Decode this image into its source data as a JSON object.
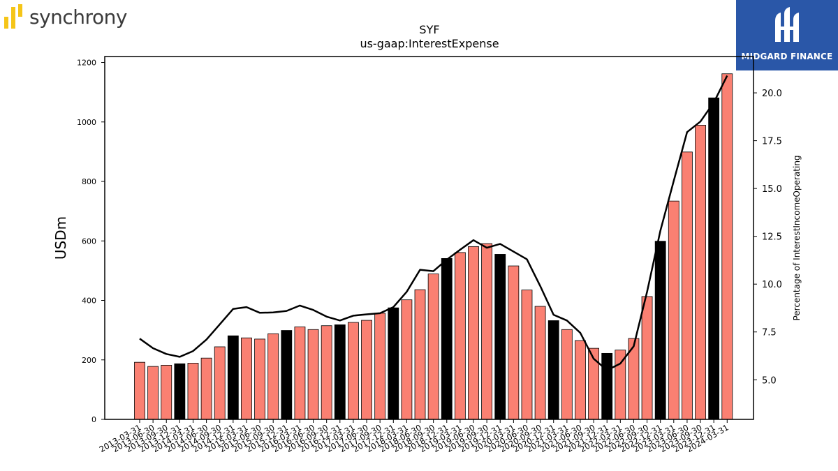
{
  "branding": {
    "left_logo": "synchrony",
    "right_logo": "MIDGARD FINANCE"
  },
  "colors": {
    "bar": "#fa8072",
    "bar_highlight": "#000000",
    "line": "#000000",
    "brand_blue": "#2a57a8",
    "brand_yellow": "#f5c518"
  },
  "chart_data": {
    "type": "bar",
    "title": "SYF",
    "subtitle": "us-gaap:InterestExpense",
    "ylabel": "USDm",
    "y2label": "Percentage of InterestIncomeOperating",
    "ylim": [
      0,
      1220
    ],
    "y2lim": [
      2.93,
      21.9
    ],
    "yticks": [
      0,
      200,
      400,
      600,
      800,
      1000,
      1200
    ],
    "y2ticks": [
      "5.0",
      "7.5",
      "10.0",
      "12.5",
      "15.0",
      "17.5",
      "20.0"
    ],
    "grid": false,
    "categories": [
      "2013-03-31",
      "2013-06-30",
      "2013-09-30",
      "2013-12-31",
      "2014-03-31",
      "2014-06-30",
      "2014-09-30",
      "2014-12-31",
      "2015-03-31",
      "2015-06-30",
      "2015-09-30",
      "2015-12-31",
      "2016-03-31",
      "2016-06-30",
      "2016-09-30",
      "2016-12-31",
      "2017-03-31",
      "2017-06-30",
      "2017-09-30",
      "2017-12-31",
      "2018-03-31",
      "2018-06-30",
      "2018-09-30",
      "2018-12-31",
      "2019-03-31",
      "2019-06-30",
      "2019-09-30",
      "2019-12-31",
      "2020-03-31",
      "2020-06-30",
      "2020-09-30",
      "2020-12-31",
      "2021-03-31",
      "2021-06-30",
      "2021-09-30",
      "2021-12-31",
      "2022-03-31",
      "2022-06-30",
      "2022-09-30",
      "2022-12-31",
      "2023-03-31",
      "2023-06-30",
      "2023-09-30",
      "2023-12-31",
      "2024-03-31"
    ],
    "series": [
      {
        "type": "bar",
        "axis": "left",
        "values": [
          192,
          178,
          182,
          187,
          189,
          206,
          244,
          281,
          274,
          270,
          288,
          299,
          311,
          302,
          315,
          318,
          326,
          333,
          357,
          375,
          402,
          436,
          489,
          541,
          561,
          581,
          591,
          555,
          516,
          435,
          380,
          332,
          302,
          265,
          239,
          222,
          233,
          272,
          413,
          599,
          734,
          899,
          989,
          1081,
          1162
        ],
        "highlight_quarter": "12-31"
      },
      {
        "type": "line",
        "axis": "right",
        "values": [
          7.15,
          6.65,
          6.35,
          6.2,
          6.5,
          7.1,
          7.9,
          8.7,
          8.8,
          8.5,
          8.52,
          8.6,
          8.88,
          8.65,
          8.3,
          8.1,
          8.35,
          8.42,
          8.48,
          8.8,
          9.6,
          10.75,
          10.68,
          11.28,
          11.8,
          12.3,
          11.9,
          12.1,
          11.7,
          11.3,
          9.9,
          8.4,
          8.1,
          7.45,
          6.1,
          5.5,
          5.85,
          6.75,
          9.6,
          12.8,
          15.4,
          17.95,
          18.5,
          19.5,
          20.9
        ]
      }
    ]
  }
}
